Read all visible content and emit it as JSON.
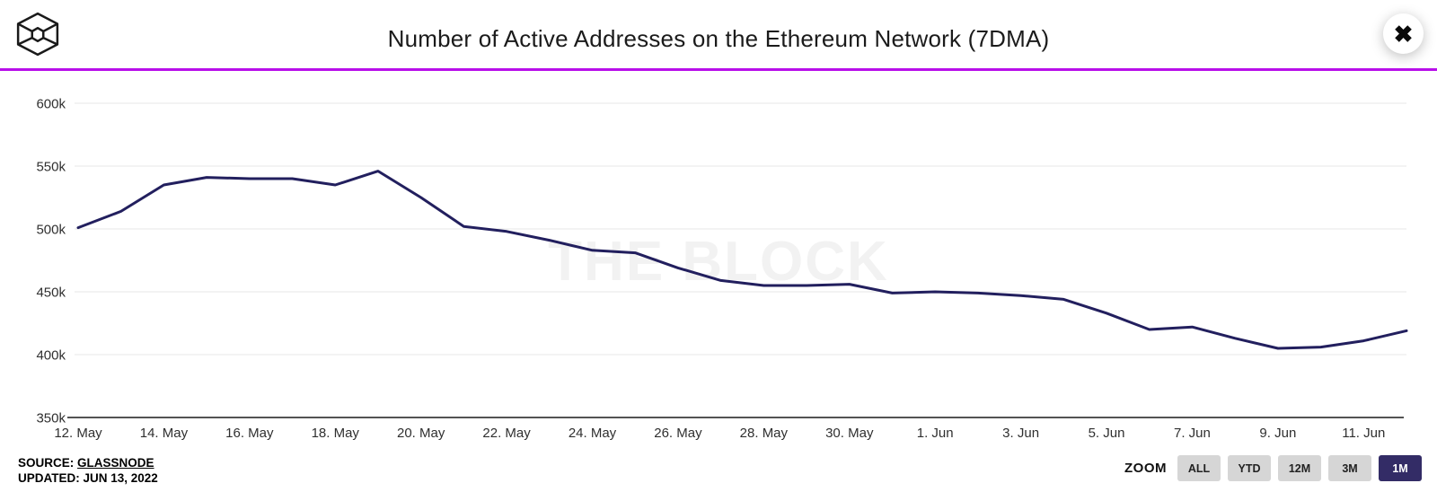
{
  "header": {
    "title": "Number of Active Addresses on the Ethereum Network (7DMA)"
  },
  "icons": {
    "close": "✖",
    "logo": "block-cube-logo"
  },
  "watermark": "THE BLOCK",
  "footer": {
    "source_prefix": "SOURCE:",
    "source_link": "GLASSNODE",
    "updated": "UPDATED: JUN 13, 2022"
  },
  "zoom_controls": {
    "label": "ZOOM",
    "options": [
      "ALL",
      "YTD",
      "12M",
      "3M",
      "1M"
    ],
    "active": "1M"
  },
  "colors": {
    "line": "#221f5e",
    "divider": "#b80fea",
    "grid": "#ececec",
    "axis": "#1a1a1a",
    "tick_text": "#2f2f2f",
    "watermark": "#f2f2f2",
    "active_button_bg": "#332c66",
    "button_bg": "#d6d6d6"
  },
  "chart_data": {
    "type": "line",
    "title": "Number of Active Addresses on the Ethereum Network (7DMA)",
    "series_name": "Active Addresses (7DMA)",
    "unit": "k",
    "ylim": [
      350,
      600
    ],
    "grid": true,
    "legend": false,
    "x": [
      "12. May",
      "13. May",
      "14. May",
      "15. May",
      "16. May",
      "17. May",
      "18. May",
      "19. May",
      "20. May",
      "21. May",
      "22. May",
      "23. May",
      "24. May",
      "25. May",
      "26. May",
      "27. May",
      "28. May",
      "29. May",
      "30. May",
      "31. May",
      "1. Jun",
      "2. Jun",
      "3. Jun",
      "4. Jun",
      "5. Jun",
      "6. Jun",
      "7. Jun",
      "8. Jun",
      "9. Jun",
      "10. Jun",
      "11. Jun",
      "12. Jun"
    ],
    "values": [
      501,
      514,
      535,
      541,
      540,
      540,
      535,
      546,
      525,
      502,
      498,
      491,
      483,
      481,
      469,
      459,
      455,
      455,
      456,
      449,
      450,
      449,
      447,
      444,
      433,
      420,
      422,
      413,
      405,
      406,
      411,
      419
    ],
    "y_ticks": [
      {
        "value": 600,
        "label": "600k"
      },
      {
        "value": 550,
        "label": "550k"
      },
      {
        "value": 500,
        "label": "500k"
      },
      {
        "value": 450,
        "label": "450k"
      },
      {
        "value": 400,
        "label": "400k"
      },
      {
        "value": 350,
        "label": "350k"
      }
    ],
    "x_tick_labels": [
      "12. May",
      "14. May",
      "16. May",
      "18. May",
      "20. May",
      "22. May",
      "24. May",
      "26. May",
      "28. May",
      "30. May",
      "1. Jun",
      "3. Jun",
      "5. Jun",
      "7. Jun",
      "9. Jun",
      "11. Jun"
    ]
  }
}
